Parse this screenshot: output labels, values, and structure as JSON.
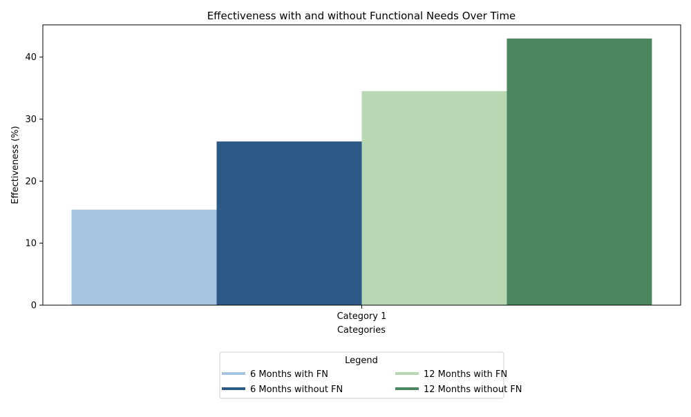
{
  "chart_data": {
    "type": "bar",
    "title": "Effectiveness with and without Functional Needs Over Time",
    "xlabel": "Categories",
    "ylabel": "Effectiveness (%)",
    "categories": [
      "Category 1"
    ],
    "ylim": [
      0,
      45.2
    ],
    "yticks": [
      0,
      10,
      20,
      30,
      40
    ],
    "grid": false,
    "legend": {
      "title": "Legend",
      "placement": "bottom-center",
      "columns": 2
    },
    "series": [
      {
        "name": "6 Months with FN",
        "values": [
          15.4
        ],
        "color": "#a6c4df"
      },
      {
        "name": "6 Months without FN",
        "values": [
          26.4
        ],
        "color": "#2c5986"
      },
      {
        "name": "12 Months with FN",
        "values": [
          34.5
        ],
        "color": "#b7d8b2"
      },
      {
        "name": "12 Months without FN",
        "values": [
          43.0
        ],
        "color": "#4b865e"
      }
    ]
  }
}
